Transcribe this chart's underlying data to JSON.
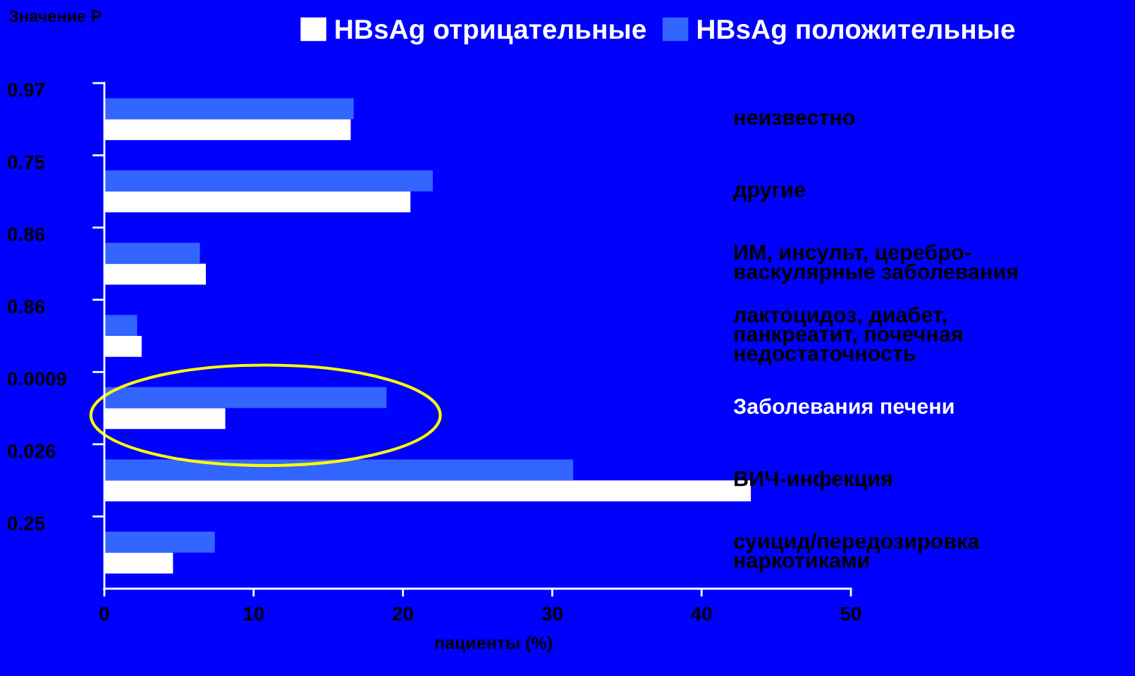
{
  "chart_data": {
    "type": "bar",
    "orientation": "horizontal",
    "ylabel": "Значение P",
    "xlabel": "пациенты (%)",
    "categories": [
      "неизвестно",
      "другие",
      "ИМ, инсульт, церебро-\nваскулярные заболевания",
      "лактоцидоз, диабет,\nпанкреатит, почечная\nнедостаточность",
      "Заболевания печени",
      "ВИЧ-инфекция",
      "суицид/передозировка\nнаркотиками"
    ],
    "series": [
      {
        "name": "HBsAg отрицательные",
        "color": "#ffffff",
        "values": [
          16.5,
          20.5,
          6.8,
          2.5,
          8.1,
          43.3,
          4.6
        ]
      },
      {
        "name": "HBsAg положительные",
        "color": "#3366ff",
        "values": [
          16.7,
          22.0,
          6.4,
          2.2,
          18.9,
          31.4,
          7.4
        ]
      }
    ],
    "xlim": [
      0,
      50
    ],
    "xticks": [
      0,
      10,
      20,
      30,
      40,
      50
    ],
    "annotations": [
      "0.97",
      "0.75",
      "0.86",
      "0.86",
      "0.0009",
      "0.026",
      "0.25"
    ],
    "legend": "top",
    "grid": false
  }
}
